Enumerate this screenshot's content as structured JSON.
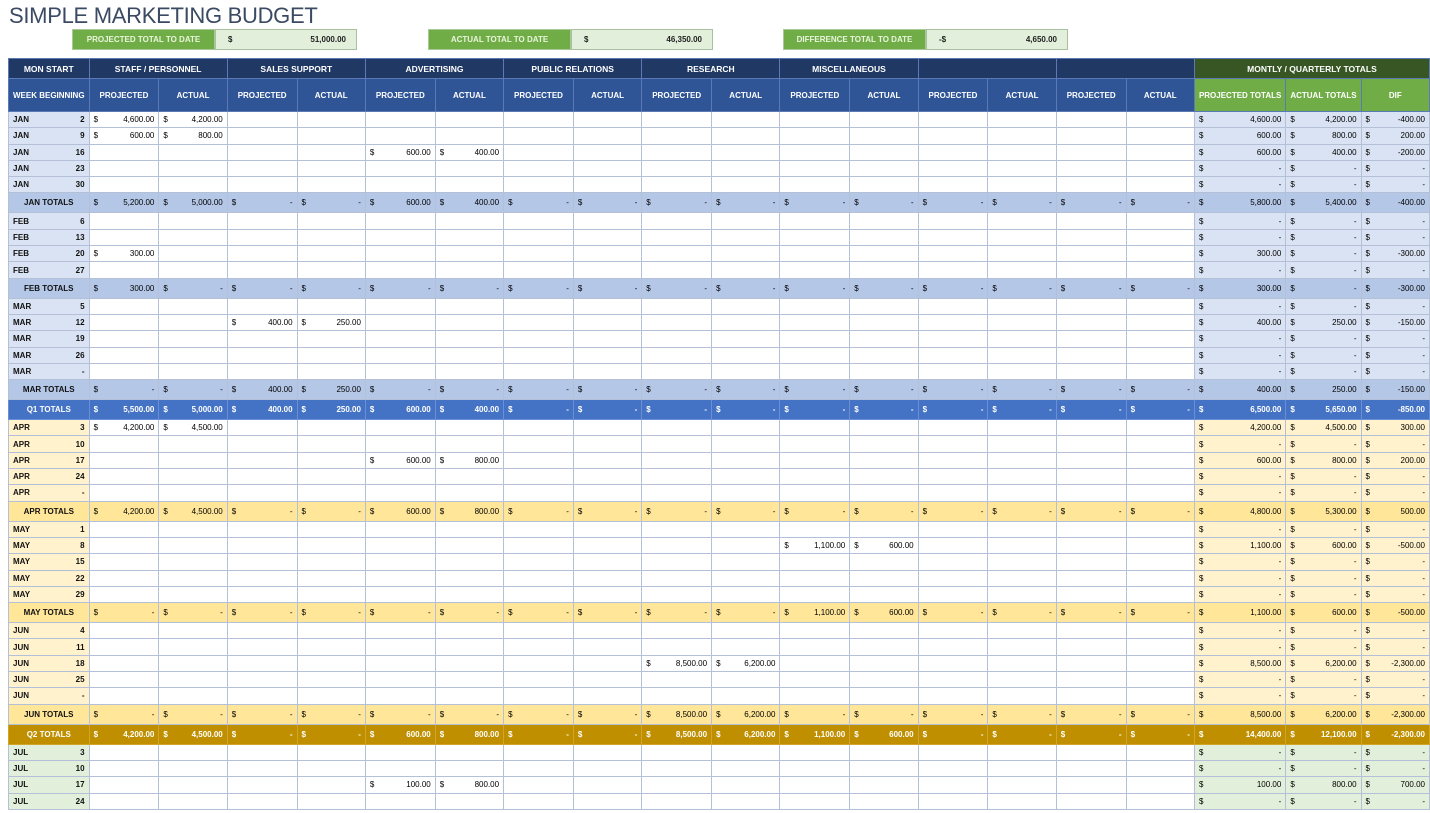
{
  "title": "SIMPLE MARKETING BUDGET",
  "summary": [
    {
      "label": "PROJECTED TOTAL TO DATE",
      "sign": "$",
      "value": "51,000.00"
    },
    {
      "label": "ACTUAL TOTAL TO DATE",
      "sign": "$",
      "value": "46,350.00"
    },
    {
      "label": "DIFFERENCE TOTAL TO DATE",
      "sign": "-$",
      "value": "4,650.00"
    }
  ],
  "header": {
    "first_col": "MON START",
    "week_label": "WEEK BEGINNING",
    "categories": [
      "STAFF / PERSONNEL",
      "SALES SUPPORT",
      "ADVERTISING",
      "PUBLIC RELATIONS",
      "RESEARCH",
      "MISCELLANEOUS",
      "",
      ""
    ],
    "projected": "PROJECTED",
    "actual": "ACTUAL",
    "totals_group": "MONTLY / QUARTERLY TOTALS",
    "totals_cols": [
      "PROJECTED TOTALS",
      "ACTUAL TOTALS",
      "DIF"
    ]
  },
  "colors": {
    "header_dark": "#203864",
    "header": "#2f5597",
    "q1_total": "#4472c4",
    "q2_total": "#bf8f00",
    "totals_header": "#375623",
    "totals_sub": "#70ad47"
  },
  "rows": [
    {
      "q": "q1",
      "type": "week",
      "m": "JAN",
      "d": "2",
      "cells": {
        "0": "4,600.00",
        "1": "4,200.00"
      },
      "tot": [
        "4,600.00",
        "4,200.00",
        "-400.00"
      ]
    },
    {
      "q": "q1",
      "type": "week",
      "m": "JAN",
      "d": "9",
      "cells": {
        "0": "600.00",
        "1": "800.00"
      },
      "tot": [
        "600.00",
        "800.00",
        "200.00"
      ]
    },
    {
      "q": "q1",
      "type": "week",
      "m": "JAN",
      "d": "16",
      "cells": {
        "4": "600.00",
        "5": "400.00"
      },
      "tot": [
        "600.00",
        "400.00",
        "-200.00"
      ]
    },
    {
      "q": "q1",
      "type": "week",
      "m": "JAN",
      "d": "23",
      "cells": {},
      "tot": [
        "-",
        "-",
        "-"
      ]
    },
    {
      "q": "q1",
      "type": "week",
      "m": "JAN",
      "d": "30",
      "cells": {},
      "tot": [
        "-",
        "-",
        "-"
      ]
    },
    {
      "q": "q1",
      "type": "month",
      "label": "JAN TOTALS",
      "cells": {
        "0": "5,200.00",
        "1": "5,000.00",
        "4": "600.00",
        "5": "400.00"
      },
      "tot": [
        "5,800.00",
        "5,400.00",
        "-400.00"
      ]
    },
    {
      "q": "q1",
      "type": "week",
      "m": "FEB",
      "d": "6",
      "cells": {},
      "tot": [
        "-",
        "-",
        "-"
      ]
    },
    {
      "q": "q1",
      "type": "week",
      "m": "FEB",
      "d": "13",
      "cells": {},
      "tot": [
        "-",
        "-",
        "-"
      ]
    },
    {
      "q": "q1",
      "type": "week",
      "m": "FEB",
      "d": "20",
      "cells": {
        "0": "300.00"
      },
      "tot": [
        "300.00",
        "-",
        "-300.00"
      ]
    },
    {
      "q": "q1",
      "type": "week",
      "m": "FEB",
      "d": "27",
      "cells": {},
      "tot": [
        "-",
        "-",
        "-"
      ]
    },
    {
      "q": "q1",
      "type": "month",
      "label": "FEB TOTALS",
      "cells": {
        "0": "300.00"
      },
      "tot": [
        "300.00",
        "-",
        "-300.00"
      ]
    },
    {
      "q": "q1",
      "type": "week",
      "m": "MAR",
      "d": "5",
      "cells": {},
      "tot": [
        "-",
        "-",
        "-"
      ]
    },
    {
      "q": "q1",
      "type": "week",
      "m": "MAR",
      "d": "12",
      "cells": {
        "2": "400.00",
        "3": "250.00"
      },
      "tot": [
        "400.00",
        "250.00",
        "-150.00"
      ]
    },
    {
      "q": "q1",
      "type": "week",
      "m": "MAR",
      "d": "19",
      "cells": {},
      "tot": [
        "-",
        "-",
        "-"
      ]
    },
    {
      "q": "q1",
      "type": "week",
      "m": "MAR",
      "d": "26",
      "cells": {},
      "tot": [
        "-",
        "-",
        "-"
      ]
    },
    {
      "q": "q1",
      "type": "week",
      "m": "MAR",
      "d": "-",
      "cells": {},
      "tot": [
        "-",
        "-",
        "-"
      ]
    },
    {
      "q": "q1",
      "type": "month",
      "label": "MAR TOTALS",
      "cells": {
        "2": "400.00",
        "3": "250.00"
      },
      "tot": [
        "400.00",
        "250.00",
        "-150.00"
      ]
    },
    {
      "q": "q1",
      "type": "quarter",
      "label": "Q1 TOTALS",
      "cells": {
        "0": "5,500.00",
        "1": "5,000.00",
        "2": "400.00",
        "3": "250.00",
        "4": "600.00",
        "5": "400.00"
      },
      "tot": [
        "6,500.00",
        "5,650.00",
        "-850.00"
      ]
    },
    {
      "q": "q2",
      "type": "week",
      "m": "APR",
      "d": "3",
      "cells": {
        "0": "4,200.00",
        "1": "4,500.00"
      },
      "tot": [
        "4,200.00",
        "4,500.00",
        "300.00"
      ]
    },
    {
      "q": "q2",
      "type": "week",
      "m": "APR",
      "d": "10",
      "cells": {},
      "tot": [
        "-",
        "-",
        "-"
      ]
    },
    {
      "q": "q2",
      "type": "week",
      "m": "APR",
      "d": "17",
      "cells": {
        "4": "600.00",
        "5": "800.00"
      },
      "tot": [
        "600.00",
        "800.00",
        "200.00"
      ]
    },
    {
      "q": "q2",
      "type": "week",
      "m": "APR",
      "d": "24",
      "cells": {},
      "tot": [
        "-",
        "-",
        "-"
      ]
    },
    {
      "q": "q2",
      "type": "week",
      "m": "APR",
      "d": "-",
      "cells": {},
      "tot": [
        "-",
        "-",
        "-"
      ]
    },
    {
      "q": "q2",
      "type": "month",
      "label": "APR TOTALS",
      "cells": {
        "0": "4,200.00",
        "1": "4,500.00",
        "4": "600.00",
        "5": "800.00"
      },
      "tot": [
        "4,800.00",
        "5,300.00",
        "500.00"
      ]
    },
    {
      "q": "q2",
      "type": "week",
      "m": "MAY",
      "d": "1",
      "cells": {},
      "tot": [
        "-",
        "-",
        "-"
      ]
    },
    {
      "q": "q2",
      "type": "week",
      "m": "MAY",
      "d": "8",
      "cells": {
        "10": "1,100.00",
        "11": "600.00"
      },
      "tot": [
        "1,100.00",
        "600.00",
        "-500.00"
      ]
    },
    {
      "q": "q2",
      "type": "week",
      "m": "MAY",
      "d": "15",
      "cells": {},
      "tot": [
        "-",
        "-",
        "-"
      ]
    },
    {
      "q": "q2",
      "type": "week",
      "m": "MAY",
      "d": "22",
      "cells": {},
      "tot": [
        "-",
        "-",
        "-"
      ]
    },
    {
      "q": "q2",
      "type": "week",
      "m": "MAY",
      "d": "29",
      "cells": {},
      "tot": [
        "-",
        "-",
        "-"
      ]
    },
    {
      "q": "q2",
      "type": "month",
      "label": "MAY TOTALS",
      "cells": {
        "10": "1,100.00",
        "11": "600.00"
      },
      "tot": [
        "1,100.00",
        "600.00",
        "-500.00"
      ]
    },
    {
      "q": "q2",
      "type": "week",
      "m": "JUN",
      "d": "4",
      "cells": {},
      "tot": [
        "-",
        "-",
        "-"
      ]
    },
    {
      "q": "q2",
      "type": "week",
      "m": "JUN",
      "d": "11",
      "cells": {},
      "tot": [
        "-",
        "-",
        "-"
      ]
    },
    {
      "q": "q2",
      "type": "week",
      "m": "JUN",
      "d": "18",
      "cells": {
        "8": "8,500.00",
        "9": "6,200.00"
      },
      "tot": [
        "8,500.00",
        "6,200.00",
        "-2,300.00"
      ]
    },
    {
      "q": "q2",
      "type": "week",
      "m": "JUN",
      "d": "25",
      "cells": {},
      "tot": [
        "-",
        "-",
        "-"
      ]
    },
    {
      "q": "q2",
      "type": "week",
      "m": "JUN",
      "d": "-",
      "cells": {},
      "tot": [
        "-",
        "-",
        "-"
      ]
    },
    {
      "q": "q2",
      "type": "month",
      "label": "JUN TOTALS",
      "cells": {
        "8": "8,500.00",
        "9": "6,200.00"
      },
      "tot": [
        "8,500.00",
        "6,200.00",
        "-2,300.00"
      ]
    },
    {
      "q": "q2",
      "type": "quarter",
      "label": "Q2 TOTALS",
      "cells": {
        "0": "4,200.00",
        "1": "4,500.00",
        "4": "600.00",
        "5": "800.00",
        "8": "8,500.00",
        "9": "6,200.00",
        "10": "1,100.00",
        "11": "600.00"
      },
      "tot": [
        "14,400.00",
        "12,100.00",
        "-2,300.00"
      ]
    },
    {
      "q": "q3",
      "type": "week",
      "m": "JUL",
      "d": "3",
      "cells": {},
      "tot": [
        "-",
        "-",
        "-"
      ]
    },
    {
      "q": "q3",
      "type": "week",
      "m": "JUL",
      "d": "10",
      "cells": {},
      "tot": [
        "-",
        "-",
        "-"
      ]
    },
    {
      "q": "q3",
      "type": "week",
      "m": "JUL",
      "d": "17",
      "cells": {
        "4": "100.00",
        "5": "800.00"
      },
      "tot": [
        "100.00",
        "800.00",
        "700.00"
      ]
    },
    {
      "q": "q3",
      "type": "week",
      "m": "JUL",
      "d": "24",
      "cells": {},
      "tot": [
        "-",
        "-",
        "-"
      ]
    }
  ]
}
